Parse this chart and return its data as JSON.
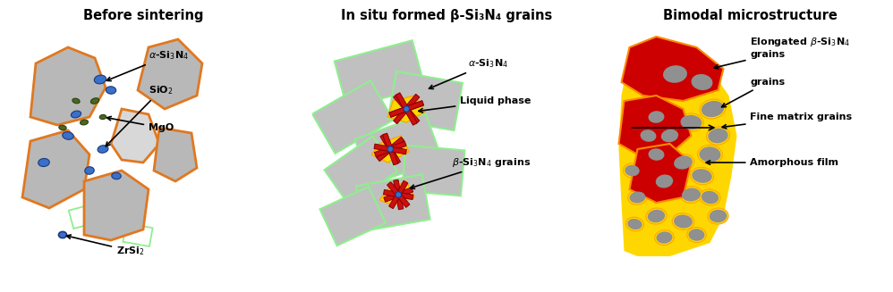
{
  "title1": "Before sintering",
  "title2": "In situ formed β-Si₃N₄ grains",
  "title3": "Bimodal microstructure",
  "bg_color": "#ffffff",
  "gray": "#b0b0b0",
  "gray_light": "#d0d0d0",
  "orange": "#e07820",
  "blue": "#3a70c8",
  "dark_blue": "#1a3a80",
  "olive": "#4a6820",
  "yellow": "#ffd700",
  "orange_yellow": "#ffa500",
  "red": "#cc1010",
  "dark_red": "#990000",
  "light_green": "#90ee90",
  "white": "#ffffff"
}
